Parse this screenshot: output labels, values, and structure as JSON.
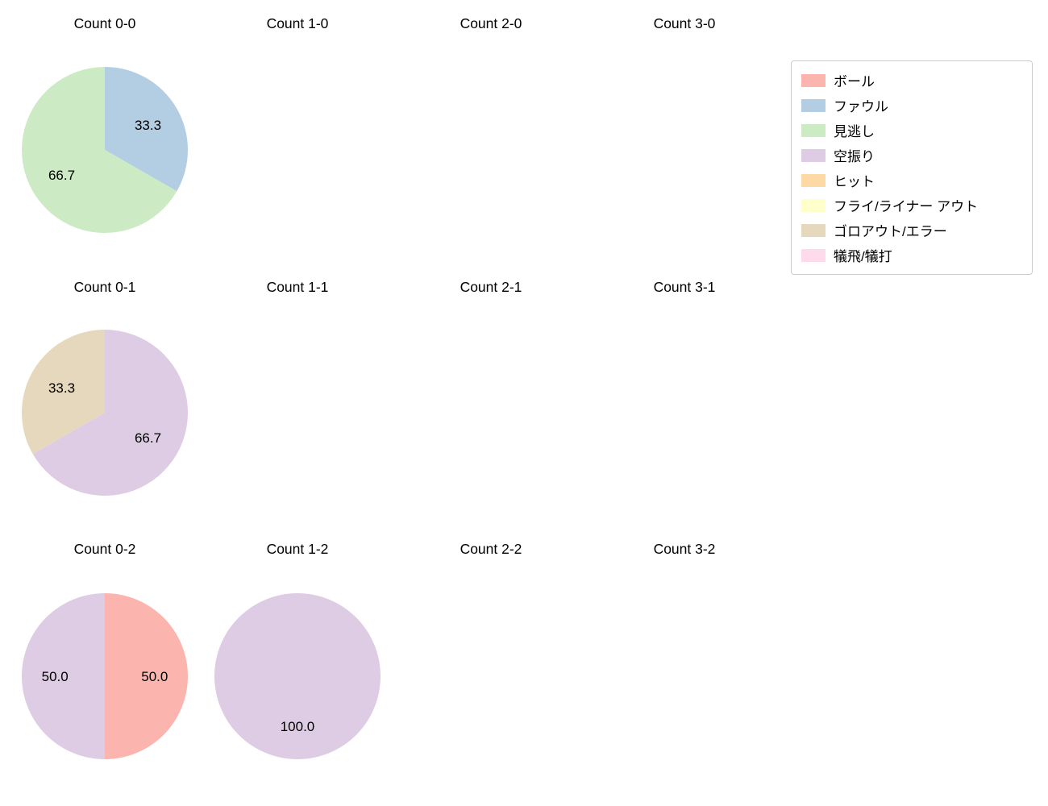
{
  "figure": {
    "background": "#ffffff"
  },
  "legend": {
    "position": "top-right",
    "items": [
      {
        "key": "ball",
        "label": "ボール",
        "color": "#fbb4ae"
      },
      {
        "key": "foul",
        "label": "ファウル",
        "color": "#b3cde3"
      },
      {
        "key": "called-strike",
        "label": "見逃し",
        "color": "#ccebc5"
      },
      {
        "key": "swinging-strike",
        "label": "空振り",
        "color": "#decbe4"
      },
      {
        "key": "hit",
        "label": "ヒット",
        "color": "#fed9a6"
      },
      {
        "key": "fly-liner-out",
        "label": "フライ/ライナー アウト",
        "color": "#ffffcc"
      },
      {
        "key": "ground-out-error",
        "label": "ゴロアウト/エラー",
        "color": "#e5d8bd"
      },
      {
        "key": "sacrifice",
        "label": "犠飛/犠打",
        "color": "#fddaec"
      }
    ]
  },
  "chart_data": [
    {
      "type": "pie",
      "title": "Count 0-0",
      "row": 0,
      "col": 0,
      "start_angle": 90,
      "direction": "clockwise",
      "slices": [
        {
          "label": "ファウル",
          "value": 33.3,
          "pct_label": "33.3",
          "color": "#b3cde3"
        },
        {
          "label": "見逃し",
          "value": 66.7,
          "pct_label": "66.7",
          "color": "#ccebc5"
        }
      ]
    },
    {
      "type": "pie",
      "title": "Count 1-0",
      "row": 0,
      "col": 1,
      "slices": []
    },
    {
      "type": "pie",
      "title": "Count 2-0",
      "row": 0,
      "col": 2,
      "slices": []
    },
    {
      "type": "pie",
      "title": "Count 3-0",
      "row": 0,
      "col": 3,
      "slices": []
    },
    {
      "type": "pie",
      "title": "Count 0-1",
      "row": 1,
      "col": 0,
      "start_angle": 90,
      "direction": "clockwise",
      "slices": [
        {
          "label": "空振り",
          "value": 66.7,
          "pct_label": "66.7",
          "color": "#decbe4"
        },
        {
          "label": "ゴロアウト/エラー",
          "value": 33.3,
          "pct_label": "33.3",
          "color": "#e5d8bd"
        }
      ]
    },
    {
      "type": "pie",
      "title": "Count 1-1",
      "row": 1,
      "col": 1,
      "slices": []
    },
    {
      "type": "pie",
      "title": "Count 2-1",
      "row": 1,
      "col": 2,
      "slices": []
    },
    {
      "type": "pie",
      "title": "Count 3-1",
      "row": 1,
      "col": 3,
      "slices": []
    },
    {
      "type": "pie",
      "title": "Count 0-2",
      "row": 2,
      "col": 0,
      "start_angle": 90,
      "direction": "clockwise",
      "slices": [
        {
          "label": "ボール",
          "value": 50.0,
          "pct_label": "50.0",
          "color": "#fbb4ae"
        },
        {
          "label": "空振り",
          "value": 50.0,
          "pct_label": "50.0",
          "color": "#decbe4"
        }
      ]
    },
    {
      "type": "pie",
      "title": "Count 1-2",
      "row": 2,
      "col": 1,
      "start_angle": 90,
      "direction": "clockwise",
      "slices": [
        {
          "label": "空振り",
          "value": 100.0,
          "pct_label": "100.0",
          "color": "#decbe4"
        }
      ]
    },
    {
      "type": "pie",
      "title": "Count 2-2",
      "row": 2,
      "col": 2,
      "slices": []
    },
    {
      "type": "pie",
      "title": "Count 3-2",
      "row": 2,
      "col": 3,
      "slices": []
    }
  ]
}
